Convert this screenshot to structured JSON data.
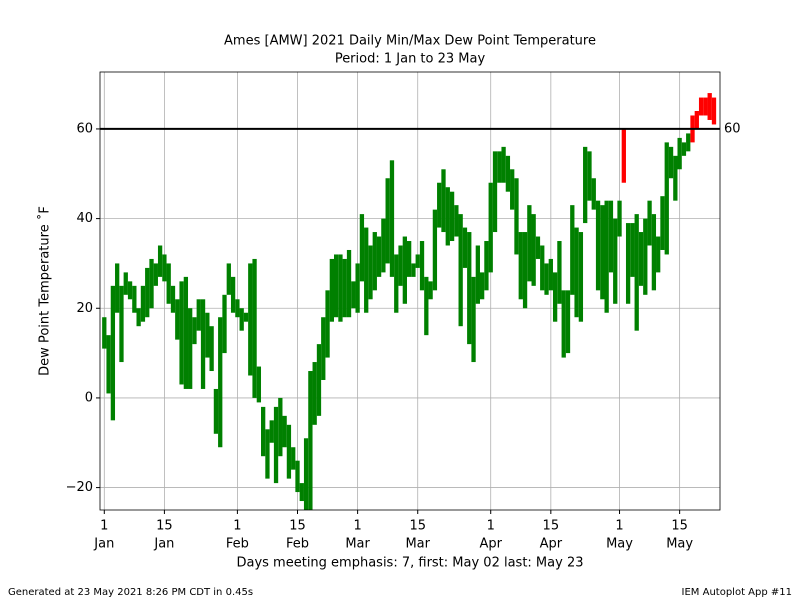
{
  "chart_data": {
    "type": "range_bar",
    "title": "Ames [AMW] 2021 Daily Min/Max Dew Point Temperature",
    "subtitle": "Period: 1 Jan to 23 May",
    "y_label": "Dew Point Temperature ˚F",
    "x_label": "Days meeting emphasis: 7, first: May 02 last: May 23",
    "footer_left": "Generated at 23 May 2021 8:26 PM CDT in 0.45s",
    "footer_right": "IEM Autoplot App #11",
    "color": "green",
    "emphasis_color": "red",
    "threshold": 60,
    "threshold_color": "black",
    "grid": true,
    "xlim": [
      0,
      144.4
    ],
    "ylim": [
      -25,
      72.7
    ],
    "yticks": [
      {
        "value": -20,
        "label": "−20"
      },
      0,
      20,
      40,
      60
    ],
    "xticks": [
      {
        "value": 1,
        "label": "1",
        "month": "Jan"
      },
      {
        "value": 15,
        "label": "15",
        "month": "Jan"
      },
      {
        "value": 32,
        "label": "1",
        "month": "Feb"
      },
      {
        "value": 46,
        "label": "15",
        "month": "Feb"
      },
      {
        "value": 60,
        "label": "1",
        "month": "Mar"
      },
      {
        "value": 74,
        "label": "15",
        "month": "Mar"
      },
      {
        "value": 91,
        "label": "1",
        "month": "Apr"
      },
      {
        "value": 105,
        "label": "15",
        "month": "Apr"
      },
      {
        "value": 121,
        "label": "1",
        "month": "May"
      },
      {
        "value": 135,
        "label": "15",
        "month": "May"
      }
    ],
    "x": [
      1,
      2,
      3,
      4,
      5,
      6,
      7,
      8,
      9,
      10,
      11,
      12,
      13,
      14,
      15,
      16,
      17,
      18,
      19,
      20,
      21,
      22,
      23,
      24,
      25,
      26,
      27,
      28,
      29,
      30,
      31,
      32,
      33,
      34,
      35,
      36,
      37,
      38,
      39,
      40,
      41,
      42,
      43,
      44,
      45,
      46,
      47,
      48,
      49,
      50,
      51,
      52,
      53,
      54,
      55,
      56,
      57,
      58,
      59,
      60,
      61,
      62,
      63,
      64,
      65,
      66,
      67,
      68,
      69,
      70,
      71,
      72,
      73,
      74,
      75,
      76,
      77,
      78,
      79,
      80,
      81,
      82,
      83,
      84,
      85,
      86,
      87,
      88,
      89,
      90,
      91,
      92,
      93,
      94,
      95,
      96,
      97,
      98,
      99,
      100,
      101,
      102,
      103,
      104,
      105,
      106,
      107,
      108,
      109,
      110,
      111,
      112,
      113,
      114,
      115,
      116,
      117,
      118,
      119,
      120,
      121,
      122,
      123,
      124,
      125,
      126,
      127,
      128,
      129,
      130,
      131,
      132,
      133,
      134,
      135,
      136,
      137,
      138,
      139,
      140,
      141,
      142,
      143
    ],
    "min": [
      11,
      1,
      -5,
      19,
      8,
      23,
      22,
      19,
      16,
      17,
      18,
      20,
      25,
      27,
      26,
      21,
      19,
      13,
      3,
      2,
      2,
      12,
      15,
      2,
      9,
      6,
      -8,
      -11,
      10,
      23,
      19,
      18,
      15,
      17,
      5,
      0,
      -1,
      -13,
      -18,
      -10,
      -19,
      -13,
      -11,
      -18,
      -16,
      -21,
      -23,
      -25,
      -25,
      -6,
      -4,
      4,
      9,
      17,
      18,
      17,
      18,
      18,
      20,
      19,
      26,
      19,
      22,
      24,
      27,
      28,
      30,
      27,
      19,
      25,
      21,
      27,
      27,
      29,
      24,
      14,
      22,
      24,
      38,
      37,
      34,
      35,
      36,
      16,
      29,
      12,
      8,
      21,
      22,
      24,
      28,
      37,
      48,
      48,
      46,
      42,
      32,
      22,
      20,
      26,
      25,
      31,
      24,
      23,
      24,
      17,
      21,
      9,
      10,
      23,
      18,
      17,
      39,
      44,
      42,
      24,
      22,
      19,
      28,
      21,
      36,
      48,
      21,
      27,
      15,
      25,
      23,
      34,
      24,
      28,
      33,
      32,
      49,
      44,
      51,
      54,
      55,
      57,
      60,
      63,
      63,
      62,
      61
    ],
    "max": [
      18,
      14,
      25,
      30,
      25,
      28,
      26,
      25,
      20,
      25,
      29,
      31,
      30,
      34,
      32,
      30,
      25,
      22,
      26,
      27,
      20,
      18,
      22,
      22,
      19,
      16,
      2,
      18,
      23,
      30,
      27,
      22,
      20,
      19,
      30,
      31,
      7,
      -2,
      -7,
      -5,
      -2,
      0,
      -4,
      -6,
      -11,
      -14,
      -19,
      -9,
      6,
      8,
      12,
      18,
      24,
      31,
      32,
      32,
      31,
      33,
      26,
      30,
      41,
      38,
      34,
      37,
      36,
      40,
      49,
      53,
      32,
      34,
      36,
      35,
      30,
      32,
      35,
      27,
      26,
      42,
      48,
      51,
      47,
      46,
      43,
      41,
      38,
      37,
      27,
      34,
      28,
      35,
      48,
      55,
      55,
      56,
      54,
      51,
      49,
      37,
      37,
      43,
      41,
      36,
      34,
      30,
      31,
      28,
      35,
      24,
      24,
      43,
      38,
      37,
      56,
      55,
      49,
      44,
      43,
      44,
      44,
      40,
      44,
      60,
      39,
      39,
      41,
      37,
      40,
      44,
      41,
      36,
      45,
      57,
      56,
      54,
      58,
      57,
      59,
      63,
      64,
      67,
      67,
      68,
      67
    ]
  }
}
